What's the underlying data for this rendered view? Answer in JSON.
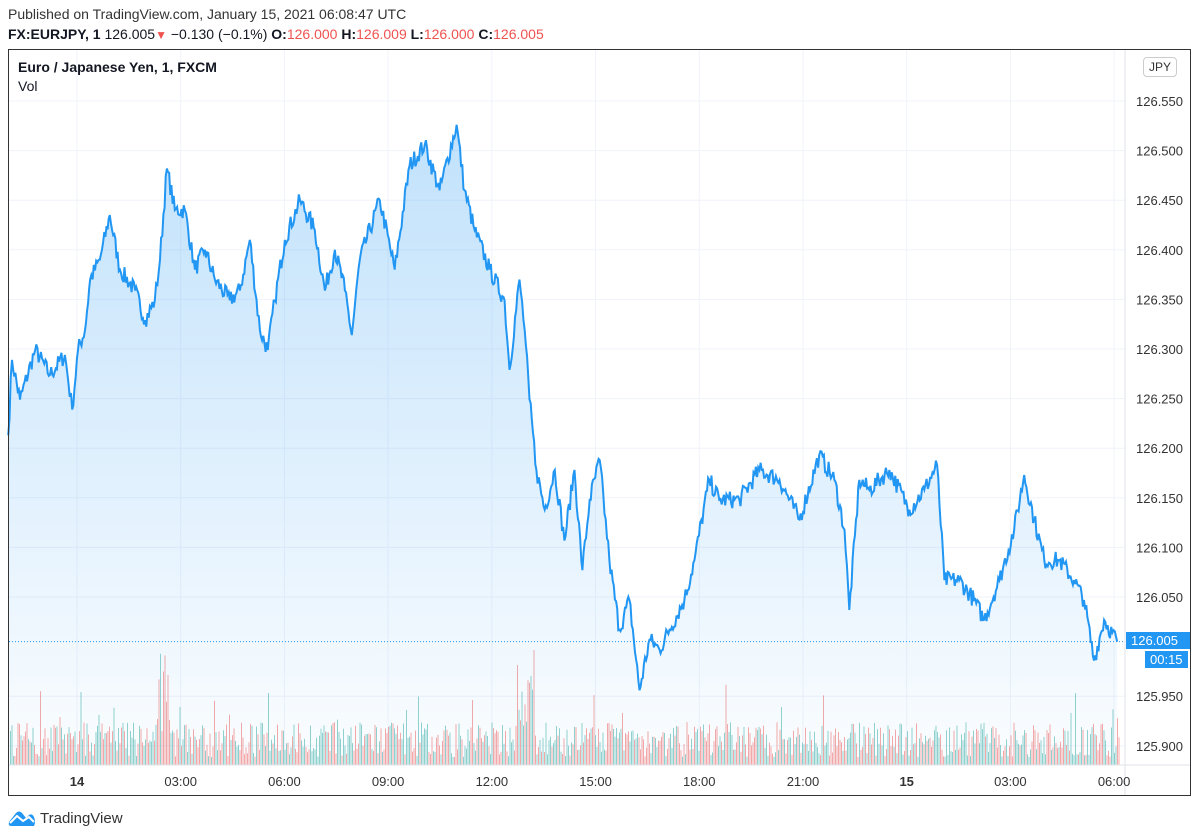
{
  "header": {
    "published": "Published on TradingView.com, January 15, 2021 06:08:47 UTC",
    "symbol": "FX:EURJPY, 1",
    "last": "126.005",
    "direction_icon": "triangle-down",
    "change": "−0.130 (−0.1%)",
    "o_label": "O:",
    "o": "126.000",
    "h_label": "H:",
    "h": "126.009",
    "l_label": "L:",
    "l": "126.000",
    "c_label": "C:",
    "c": "126.005"
  },
  "legend": {
    "title": "Euro / Japanese Yen, 1, FXCM",
    "vol": "Vol"
  },
  "currency_button": "JPY",
  "last_price_label": "126.005",
  "countdown": "00:15",
  "footer": {
    "brand": "TradingView"
  },
  "colors": {
    "line": "#2196f3",
    "up": "#26a69a",
    "down": "#ef5350",
    "grid": "#f0f3fa"
  },
  "chart_data": {
    "type": "area",
    "title": "Euro / Japanese Yen, 1, FXCM",
    "x_unit": "hours since Jan 14 00:00 UTC",
    "ylim": [
      125.88,
      126.6
    ],
    "y_ticks": [
      "126.550",
      "126.500",
      "126.450",
      "126.400",
      "126.350",
      "126.300",
      "126.250",
      "126.200",
      "126.150",
      "126.100",
      "126.050",
      "125.950",
      "125.900"
    ],
    "x_ticks": [
      {
        "h": 0,
        "label": "14",
        "bold": true
      },
      {
        "h": 3,
        "label": "03:00"
      },
      {
        "h": 6,
        "label": "06:00"
      },
      {
        "h": 9,
        "label": "09:00"
      },
      {
        "h": 12,
        "label": "12:00"
      },
      {
        "h": 15,
        "label": "15:00"
      },
      {
        "h": 18,
        "label": "18:00"
      },
      {
        "h": 21,
        "label": "21:00"
      },
      {
        "h": 24,
        "label": "15",
        "bold": true
      },
      {
        "h": 27,
        "label": "03:00"
      },
      {
        "h": 30,
        "label": "06:00"
      }
    ],
    "last_price": 126.005,
    "points": [
      [
        -1.99,
        126.213
      ],
      [
        -1.88,
        126.289
      ],
      [
        -1.65,
        126.249
      ],
      [
        -1.21,
        126.299
      ],
      [
        -0.78,
        126.274
      ],
      [
        -0.35,
        126.294
      ],
      [
        -0.14,
        126.239
      ],
      [
        0.03,
        126.299
      ],
      [
        0.23,
        126.319
      ],
      [
        0.38,
        126.37
      ],
      [
        0.66,
        126.39
      ],
      [
        0.95,
        126.435
      ],
      [
        1.24,
        126.38
      ],
      [
        1.68,
        126.359
      ],
      [
        1.97,
        126.329
      ],
      [
        2.25,
        126.349
      ],
      [
        2.4,
        126.39
      ],
      [
        2.6,
        126.482
      ],
      [
        2.83,
        126.44
      ],
      [
        3.12,
        126.44
      ],
      [
        3.41,
        126.38
      ],
      [
        3.7,
        126.4
      ],
      [
        3.99,
        126.37
      ],
      [
        4.42,
        126.349
      ],
      [
        4.71,
        126.359
      ],
      [
        5.0,
        126.41
      ],
      [
        5.29,
        126.319
      ],
      [
        5.52,
        126.299
      ],
      [
        5.72,
        126.349
      ],
      [
        6.01,
        126.41
      ],
      [
        6.45,
        126.45
      ],
      [
        6.88,
        126.42
      ],
      [
        7.17,
        126.359
      ],
      [
        7.46,
        126.4
      ],
      [
        7.75,
        126.359
      ],
      [
        7.95,
        126.314
      ],
      [
        8.18,
        126.39
      ],
      [
        8.76,
        126.45
      ],
      [
        9.19,
        126.38
      ],
      [
        9.62,
        126.485
      ],
      [
        10.06,
        126.506
      ],
      [
        10.49,
        126.46
      ],
      [
        10.98,
        126.526
      ],
      [
        11.21,
        126.46
      ],
      [
        11.5,
        126.42
      ],
      [
        11.94,
        126.38
      ],
      [
        12.37,
        126.349
      ],
      [
        12.51,
        126.279
      ],
      [
        12.8,
        126.37
      ],
      [
        12.95,
        126.319
      ],
      [
        13.09,
        126.249
      ],
      [
        13.29,
        126.178
      ],
      [
        13.53,
        126.138
      ],
      [
        13.82,
        126.178
      ],
      [
        14.1,
        126.107
      ],
      [
        14.39,
        126.178
      ],
      [
        14.62,
        126.077
      ],
      [
        14.83,
        126.148
      ],
      [
        15.12,
        126.188
      ],
      [
        15.4,
        126.087
      ],
      [
        15.69,
        126.017
      ],
      [
        15.98,
        126.047
      ],
      [
        16.27,
        125.956
      ],
      [
        16.56,
        126.007
      ],
      [
        16.85,
        125.997
      ],
      [
        17.14,
        126.017
      ],
      [
        17.57,
        126.047
      ],
      [
        17.86,
        126.087
      ],
      [
        18.29,
        126.168
      ],
      [
        18.58,
        126.148
      ],
      [
        19.16,
        126.148
      ],
      [
        19.74,
        126.178
      ],
      [
        20.32,
        126.168
      ],
      [
        20.9,
        126.128
      ],
      [
        21.47,
        126.193
      ],
      [
        21.91,
        126.168
      ],
      [
        22.2,
        126.118
      ],
      [
        22.34,
        126.037
      ],
      [
        22.63,
        126.168
      ],
      [
        22.92,
        126.158
      ],
      [
        23.5,
        126.178
      ],
      [
        24.08,
        126.138
      ],
      [
        24.51,
        126.158
      ],
      [
        24.88,
        126.183
      ],
      [
        25.09,
        126.067
      ],
      [
        25.52,
        126.067
      ],
      [
        25.95,
        126.047
      ],
      [
        26.24,
        126.027
      ],
      [
        26.68,
        126.067
      ],
      [
        27.11,
        126.118
      ],
      [
        27.4,
        126.173
      ],
      [
        27.69,
        126.128
      ],
      [
        27.98,
        126.087
      ],
      [
        28.41,
        126.087
      ],
      [
        28.84,
        126.067
      ],
      [
        29.13,
        126.047
      ],
      [
        29.42,
        125.986
      ],
      [
        29.71,
        126.027
      ],
      [
        30.09,
        126.005
      ]
    ]
  }
}
